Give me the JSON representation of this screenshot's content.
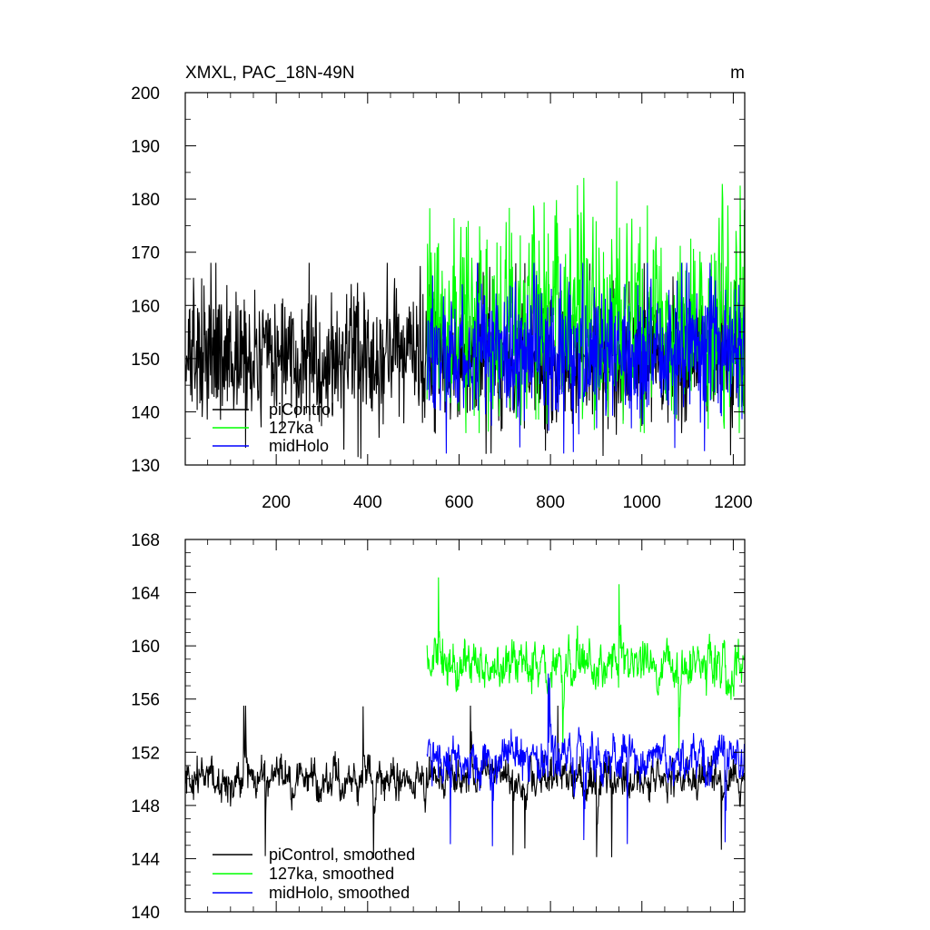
{
  "chart_data": [
    {
      "type": "line",
      "title_left": "XMXL, PAC_18N-49N",
      "title_right": "m",
      "xlabel": "",
      "ylabel": "",
      "xlim": [
        1,
        1225
      ],
      "ylim": [
        130,
        200
      ],
      "x_ticks": [
        200,
        400,
        600,
        800,
        1000,
        1200
      ],
      "y_ticks": [
        130,
        140,
        150,
        160,
        170,
        180,
        190,
        200
      ],
      "grid": false,
      "legend_placement": "bottom-left",
      "series": [
        {
          "name": "piControl",
          "color": "#000000",
          "x_range": [
            1,
            1225
          ],
          "mean": 150,
          "noise_range": [
            130,
            168
          ],
          "note_values": {
            "max": 172,
            "min": 130
          }
        },
        {
          "name": "127ka",
          "color": "#00ff00",
          "x_range": [
            530,
            1225
          ],
          "mean": 157,
          "noise_range": [
            136,
            192
          ],
          "note_values": {
            "max": 192,
            "min": 136
          }
        },
        {
          "name": "midHolo",
          "color": "#0000ff",
          "x_range": [
            530,
            1225
          ],
          "mean": 151,
          "noise_range": [
            130,
            168
          ],
          "note_values": {
            "max": 168,
            "min": 130
          }
        }
      ]
    },
    {
      "type": "line",
      "title_left": "",
      "title_right": "",
      "xlabel": "",
      "ylabel": "",
      "xlim": [
        1,
        1225
      ],
      "ylim": [
        140,
        168
      ],
      "x_ticks": [
        200,
        400,
        600,
        800,
        1000,
        1200
      ],
      "y_ticks": [
        140,
        144,
        148,
        152,
        156,
        160,
        164,
        168
      ],
      "grid": false,
      "legend_placement": "bottom-left",
      "series": [
        {
          "name": "piControl, smoothed",
          "color": "#000000",
          "x_range": [
            1,
            1225
          ],
          "mean": 150,
          "noise_range": [
            143.5,
            155.5
          ]
        },
        {
          "name": "127ka, smoothed",
          "color": "#00ff00",
          "x_range": [
            530,
            1225
          ],
          "mean": 158.5,
          "noise_range": [
            152,
            166
          ]
        },
        {
          "name": "midHolo, smoothed",
          "color": "#0000ff",
          "x_range": [
            530,
            1225
          ],
          "mean": 151.5,
          "noise_range": [
            144.2,
            158.5
          ]
        }
      ]
    }
  ]
}
